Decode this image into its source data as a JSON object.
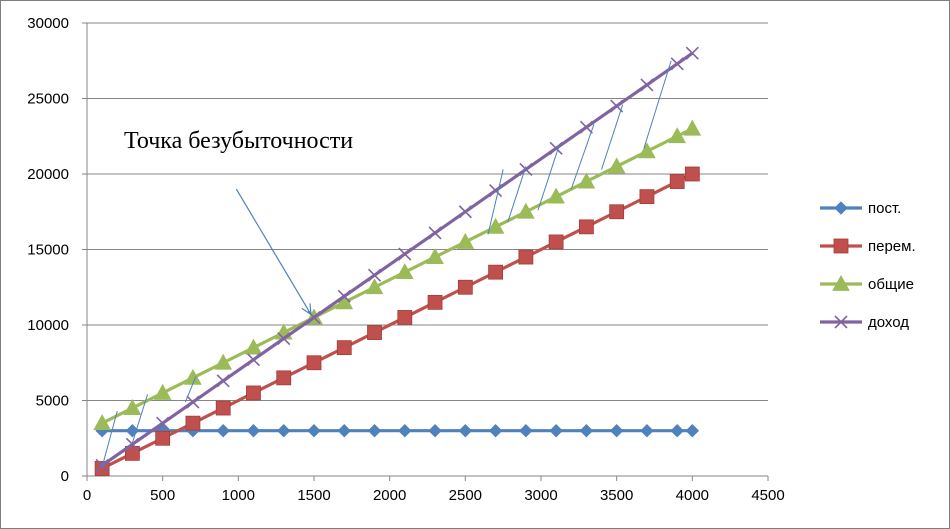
{
  "chart_data": {
    "type": "line",
    "title": "",
    "xlabel": "",
    "ylabel": "",
    "xlim": [
      0,
      4500
    ],
    "ylim": [
      0,
      30000
    ],
    "x_ticks": [
      0,
      500,
      1000,
      1500,
      2000,
      2500,
      3000,
      3500,
      4000,
      4500
    ],
    "y_ticks": [
      0,
      5000,
      10000,
      15000,
      20000,
      25000,
      30000
    ],
    "grid": "horizontal",
    "legend_position": "right",
    "x": [
      100,
      300,
      500,
      700,
      900,
      1100,
      1300,
      1500,
      1700,
      1900,
      2100,
      2300,
      2500,
      2700,
      2900,
      3100,
      3300,
      3500,
      3700,
      3900,
      4000
    ],
    "series": [
      {
        "name": "пост.",
        "color": "#4f81bd",
        "marker": "diamond",
        "values": [
          3000,
          3000,
          3000,
          3000,
          3000,
          3000,
          3000,
          3000,
          3000,
          3000,
          3000,
          3000,
          3000,
          3000,
          3000,
          3000,
          3000,
          3000,
          3000,
          3000,
          3000
        ]
      },
      {
        "name": "перем.",
        "color": "#c0504d",
        "marker": "square",
        "values": [
          500,
          1500,
          2500,
          3500,
          4500,
          5500,
          6500,
          7500,
          8500,
          9500,
          10500,
          11500,
          12500,
          13500,
          14500,
          15500,
          16500,
          17500,
          18500,
          19500,
          20000
        ]
      },
      {
        "name": "общие",
        "color": "#9bbb59",
        "marker": "triangle",
        "values": [
          3500,
          4500,
          5500,
          6500,
          7500,
          8500,
          9500,
          10500,
          11500,
          12500,
          13500,
          14500,
          15500,
          16500,
          17500,
          18500,
          19500,
          20500,
          21500,
          22500,
          23000
        ]
      },
      {
        "name": "доход",
        "color": "#8064a2",
        "marker": "x",
        "values": [
          700,
          2100,
          3500,
          4900,
          6300,
          7700,
          9100,
          10500,
          11900,
          13300,
          14700,
          16100,
          17500,
          18900,
          20300,
          21700,
          23100,
          24500,
          25900,
          27300,
          28000
        ]
      }
    ],
    "annotation": {
      "text": "Точка безубыточности",
      "arrow_from": [
        1000,
        19000
      ],
      "arrow_to": [
        1480,
        10700
      ]
    },
    "hatch_lines": [
      [
        [
          100,
          600
        ],
        [
          200,
          4300
        ]
      ],
      [
        [
          300,
          2200
        ],
        [
          400,
          5400
        ]
      ],
      [
        [
          650,
          4900
        ],
        [
          720,
          6600
        ]
      ],
      [
        [
          2650,
          16000
        ],
        [
          2750,
          20300
        ]
      ],
      [
        [
          2780,
          16800
        ],
        [
          2900,
          20500
        ]
      ],
      [
        [
          2980,
          17600
        ],
        [
          3120,
          21900
        ]
      ],
      [
        [
          3200,
          19000
        ],
        [
          3350,
          23300
        ]
      ],
      [
        [
          3400,
          20300
        ],
        [
          3540,
          24600
        ]
      ],
      [
        [
          3680,
          21700
        ],
        [
          3860,
          27500
        ]
      ]
    ]
  }
}
